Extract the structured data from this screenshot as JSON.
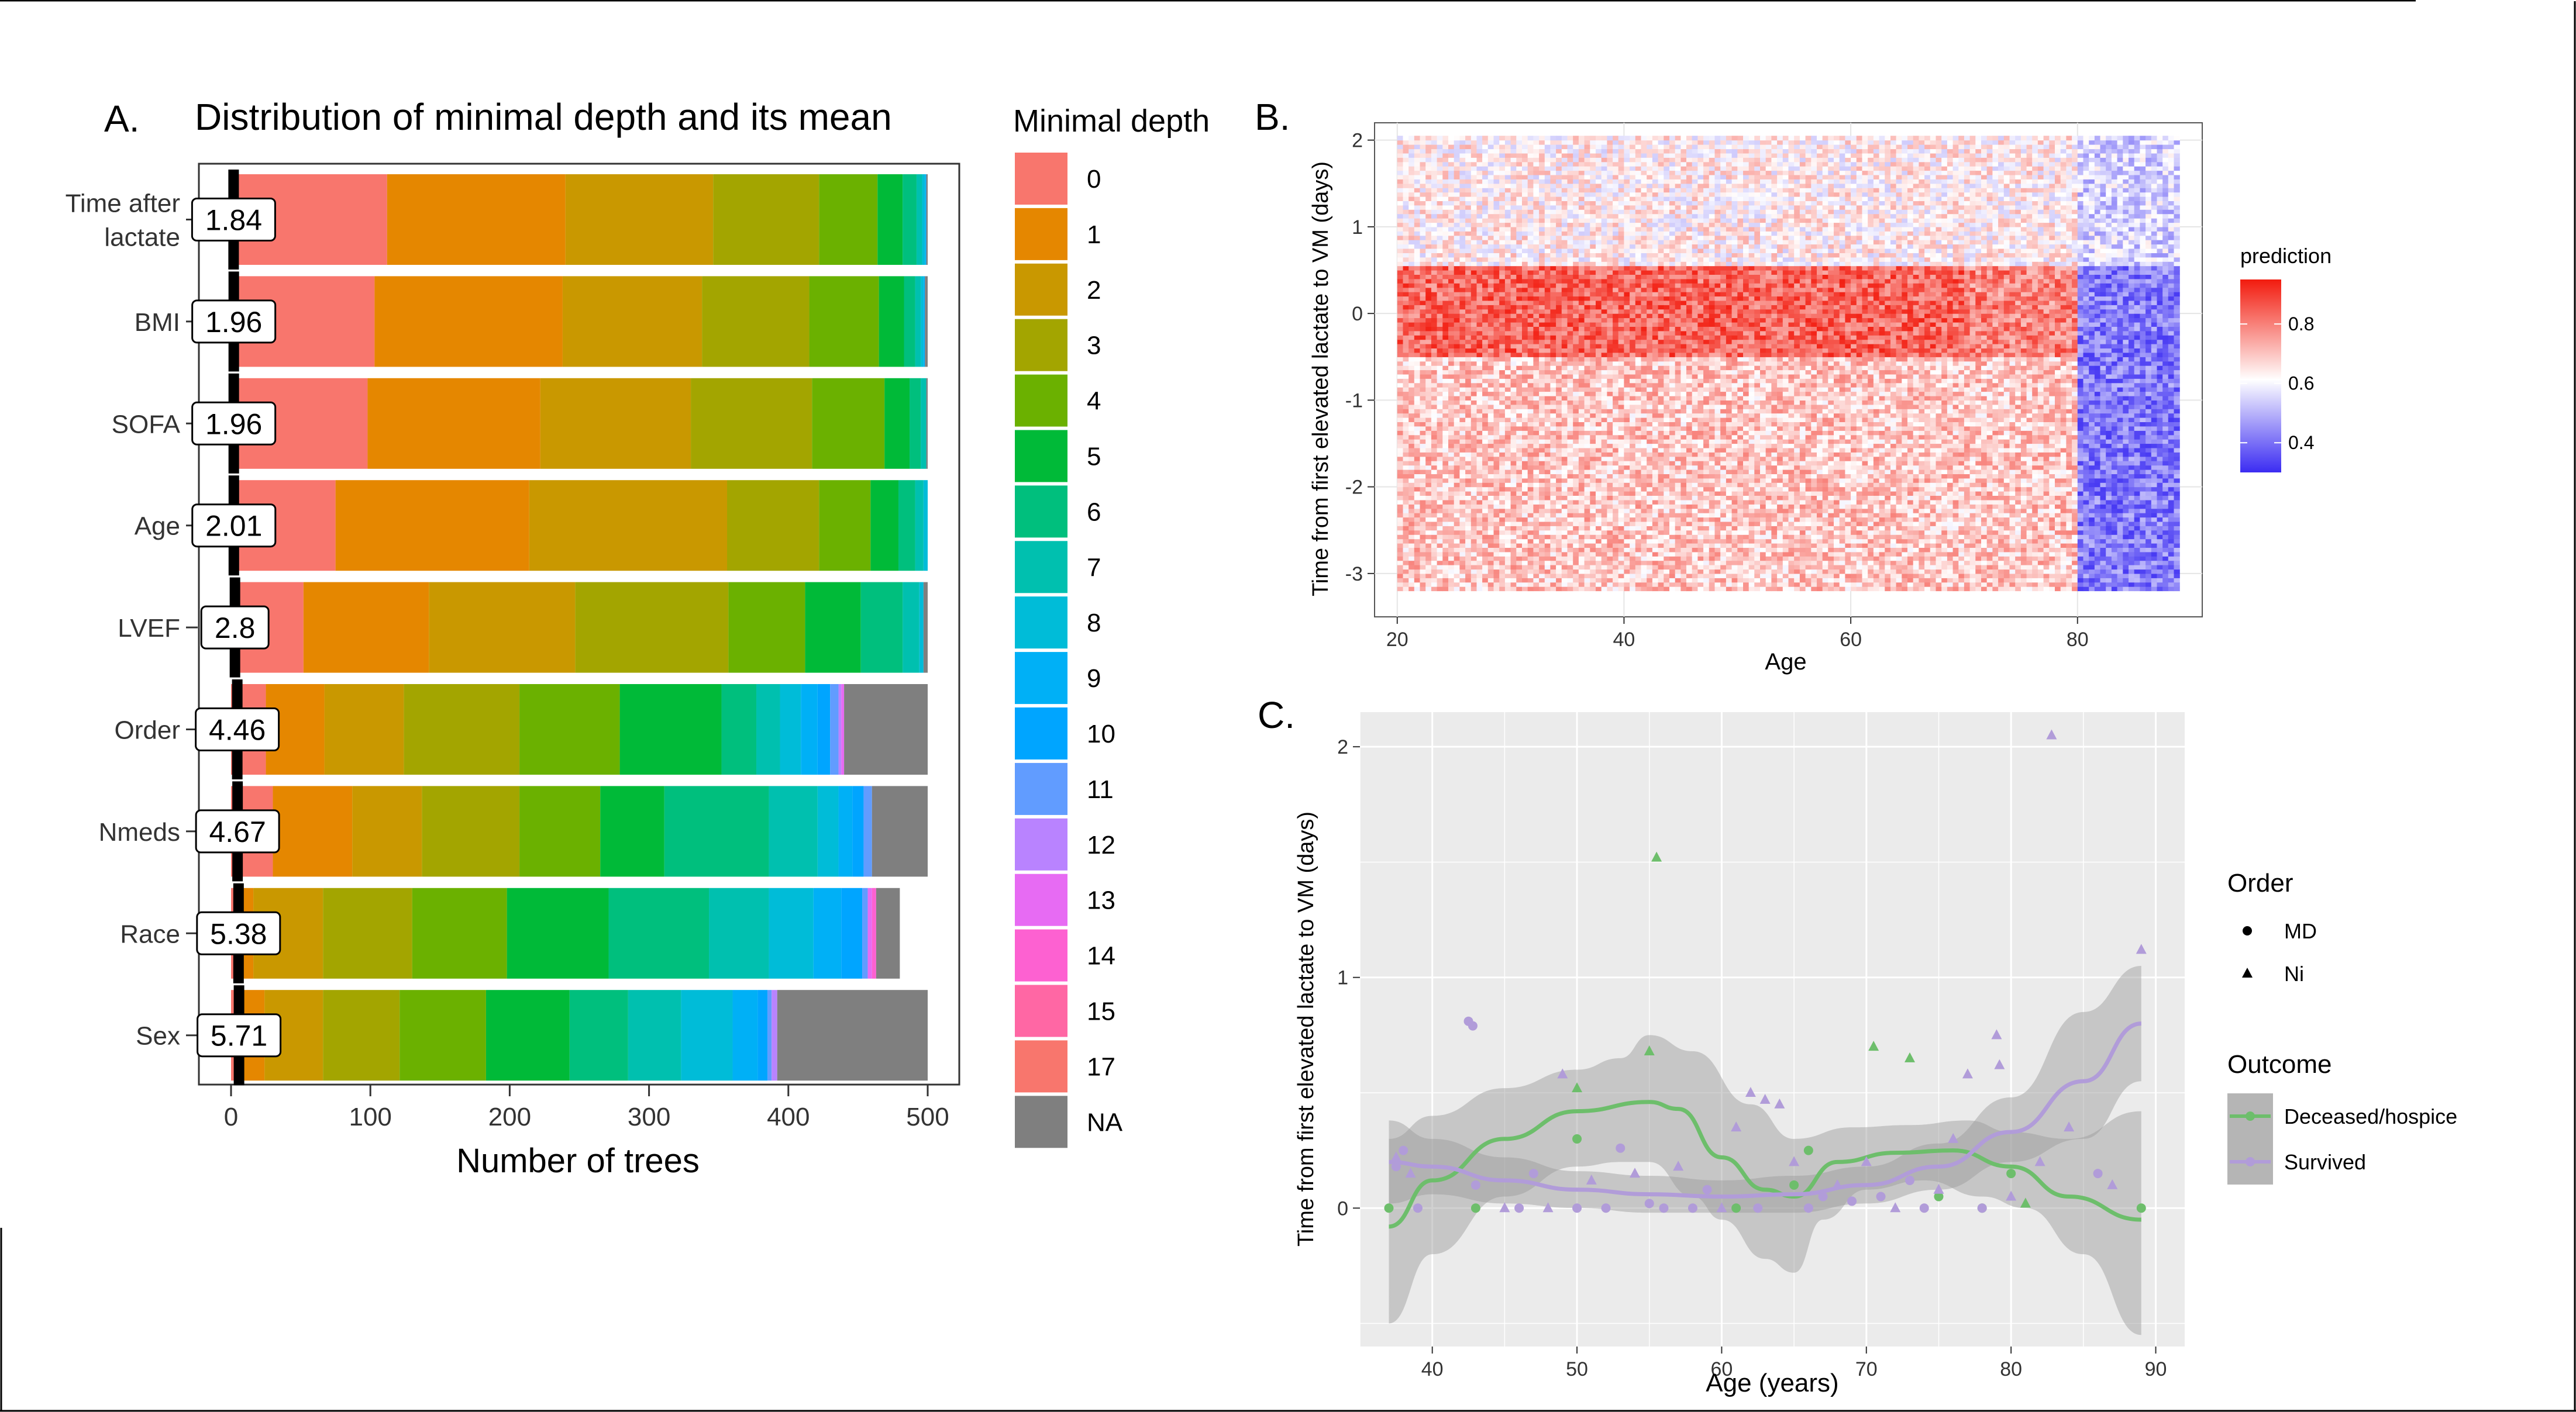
{
  "panels": {
    "a": {
      "letter": "A.",
      "title": "Distribution of minimal depth and its mean"
    },
    "b": {
      "letter": "B."
    },
    "c": {
      "letter": "C."
    }
  },
  "chart_data": [
    {
      "id": "A",
      "type": "bar",
      "orientation": "horizontal",
      "stacked": true,
      "title": "Distribution of minimal depth and its mean",
      "xlabel": "Number of trees",
      "ylabel": "",
      "xlim": [
        0,
        500
      ],
      "xticks": [
        0,
        100,
        200,
        300,
        400,
        500
      ],
      "legend_title": "Minimal depth",
      "legend_position": "right",
      "segment_keys": [
        "0",
        "1",
        "2",
        "3",
        "4",
        "5",
        "6",
        "7",
        "8",
        "9",
        "10",
        "11",
        "12",
        "13",
        "14",
        "15",
        "17",
        "NA"
      ],
      "segment_colors": [
        "#F8766D",
        "#E58700",
        "#C99800",
        "#A3A500",
        "#6BB100",
        "#00BA38",
        "#00BF7D",
        "#00C0AF",
        "#00BCD8",
        "#00B0F6",
        "#00A5FF",
        "#619CFF",
        "#B983FF",
        "#E76BF3",
        "#FD61D1",
        "#FF67A4",
        "#F8766D",
        "#7F7F7F"
      ],
      "categories": [
        "Time after lactate",
        "BMI",
        "SOFA",
        "Age",
        "LVEF",
        "Order",
        "Nmeds",
        "Race",
        "Sex"
      ],
      "category_display": [
        [
          "Time after",
          "lactate"
        ],
        [
          "BMI"
        ],
        [
          "SOFA"
        ],
        [
          "Age"
        ],
        [
          "LVEF"
        ],
        [
          "Order"
        ],
        [
          "Nmeds"
        ],
        [
          "Race"
        ],
        [
          "Sex"
        ]
      ],
      "counts": [
        [
          112,
          128,
          106,
          76,
          42,
          18,
          10,
          4,
          2,
          1,
          0,
          0,
          0,
          0,
          0,
          0,
          0,
          1
        ],
        [
          103,
          135,
          100,
          77,
          50,
          18,
          8,
          4,
          2,
          1,
          0,
          0,
          0,
          0,
          0,
          0,
          0,
          2
        ],
        [
          98,
          124,
          108,
          87,
          52,
          18,
          8,
          4,
          0,
          0,
          0,
          0,
          0,
          0,
          0,
          0,
          0,
          1
        ],
        [
          75,
          139,
          142,
          66,
          37,
          20,
          12,
          6,
          3,
          0,
          0,
          0,
          0,
          0,
          0,
          0,
          0,
          0
        ],
        [
          52,
          90,
          105,
          110,
          55,
          40,
          30,
          12,
          3,
          0,
          0,
          0,
          0,
          0,
          0,
          0,
          0,
          3
        ],
        [
          25,
          42,
          57,
          83,
          72,
          73,
          25,
          17,
          15,
          12,
          9,
          6,
          2,
          2,
          0,
          0,
          0,
          60
        ],
        [
          30,
          57,
          50,
          70,
          58,
          46,
          75,
          35,
          15,
          10,
          8,
          6,
          0,
          0,
          0,
          0,
          0,
          40
        ],
        [
          6,
          10,
          50,
          64,
          68,
          73,
          72,
          43,
          32,
          20,
          15,
          4,
          0,
          3,
          3,
          0,
          0,
          17
        ],
        [
          2,
          22,
          42,
          55,
          62,
          60,
          42,
          38,
          37,
          18,
          7,
          3,
          4,
          0,
          0,
          0,
          0,
          108
        ]
      ],
      "means": [
        1.84,
        1.96,
        1.96,
        2.01,
        2.8,
        4.46,
        4.67,
        5.38,
        5.71
      ],
      "mean_labels": [
        "1.84",
        "1.96",
        "1.96",
        "2.01",
        "2.8",
        "4.46",
        "4.67",
        "5.38",
        "5.71"
      ]
    },
    {
      "id": "B",
      "type": "heatmap",
      "xlabel": "Age",
      "ylabel": "Time from first elevated lactate to VM (days)",
      "xlim": [
        18,
        91
      ],
      "ylim": [
        -3.5,
        2.2
      ],
      "xticks": [
        20,
        40,
        60,
        80
      ],
      "yticks": [
        -3,
        -2,
        -1,
        0,
        1,
        2
      ],
      "x_data_range": [
        20,
        89
      ],
      "y_data_range": [
        -3.2,
        2.05
      ],
      "legend_title": "prediction",
      "legend_position": "right",
      "color_scale": {
        "low": "#3B2CF2",
        "mid": "#FFFFFF",
        "high": "#F21B0E",
        "min": 0.3,
        "mid_value": 0.62,
        "max": 0.95
      },
      "legend_ticks": [
        0.4,
        0.6,
        0.8
      ],
      "regions": [
        {
          "x": [
            20,
            80
          ],
          "y": [
            0.55,
            2.05
          ],
          "mean": 0.64
        },
        {
          "x": [
            20,
            70
          ],
          "y": [
            -0.5,
            0.55
          ],
          "mean": 0.84
        },
        {
          "x": [
            70,
            80
          ],
          "y": [
            -0.5,
            0.55
          ],
          "mean": 0.8
        },
        {
          "x": [
            20,
            80
          ],
          "y": [
            -3.2,
            -0.5
          ],
          "mean": 0.7
        },
        {
          "x": [
            80,
            89
          ],
          "y": [
            0.55,
            2.05
          ],
          "mean": 0.55
        },
        {
          "x": [
            80,
            89
          ],
          "y": [
            -3.2,
            0.55
          ],
          "mean": 0.42
        }
      ]
    },
    {
      "id": "C",
      "type": "scatter",
      "xlabel": "Age (years)",
      "ylabel": "Time from first elevated lactate to VM (days)",
      "xlim": [
        35,
        92
      ],
      "ylim": [
        -0.6,
        2.15
      ],
      "xticks": [
        40,
        50,
        60,
        70,
        80,
        90
      ],
      "yticks": [
        0,
        1,
        2
      ],
      "legend_position": "right",
      "shape_legend": {
        "title": "Order",
        "items": [
          {
            "label": "MD",
            "shape": "circle"
          },
          {
            "label": "Ni",
            "shape": "triangle"
          }
        ]
      },
      "color_legend": {
        "title": "Outcome"
      },
      "series": [
        {
          "name": "Deceased/hospice",
          "color": "#6DBE6B",
          "points": [
            {
              "x": 37,
              "y": 0,
              "s": "c"
            },
            {
              "x": 43,
              "y": 0,
              "s": "c"
            },
            {
              "x": 50,
              "y": 0.3,
              "s": "c"
            },
            {
              "x": 50,
              "y": 0.52,
              "s": "t"
            },
            {
              "x": 55,
              "y": 0.68,
              "s": "t"
            },
            {
              "x": 55.5,
              "y": 1.52,
              "s": "t"
            },
            {
              "x": 61,
              "y": 0,
              "s": "c"
            },
            {
              "x": 65,
              "y": 0.1,
              "s": "c"
            },
            {
              "x": 66,
              "y": 0.25,
              "s": "c"
            },
            {
              "x": 70.5,
              "y": 0.7,
              "s": "t"
            },
            {
              "x": 73,
              "y": 0.65,
              "s": "t"
            },
            {
              "x": 75,
              "y": 0.05,
              "s": "c"
            },
            {
              "x": 78,
              "y": 0,
              "s": "c"
            },
            {
              "x": 80,
              "y": 0.15,
              "s": "c"
            },
            {
              "x": 81,
              "y": 0.02,
              "s": "t"
            },
            {
              "x": 89,
              "y": 0,
              "s": "c"
            }
          ],
          "smooth": [
            [
              37,
              -0.08
            ],
            [
              40,
              0.12
            ],
            [
              45,
              0.3
            ],
            [
              50,
              0.42
            ],
            [
              55,
              0.46
            ],
            [
              57,
              0.43
            ],
            [
              60,
              0.22
            ],
            [
              63,
              0.08
            ],
            [
              65,
              0.05
            ],
            [
              68,
              0.2
            ],
            [
              72,
              0.24
            ],
            [
              76,
              0.25
            ],
            [
              80,
              0.18
            ],
            [
              84,
              0.05
            ],
            [
              89,
              -0.05
            ]
          ],
          "band_upper": [
            [
              37,
              0.3
            ],
            [
              40,
              0.4
            ],
            [
              45,
              0.52
            ],
            [
              50,
              0.6
            ],
            [
              53,
              0.65
            ],
            [
              55,
              0.75
            ],
            [
              58,
              0.68
            ],
            [
              62,
              0.45
            ],
            [
              65,
              0.3
            ],
            [
              69,
              0.35
            ],
            [
              73,
              0.36
            ],
            [
              77,
              0.38
            ],
            [
              80,
              0.33
            ],
            [
              84,
              0.3
            ],
            [
              89,
              0.42
            ]
          ],
          "band_lower": [
            [
              37,
              -0.5
            ],
            [
              40,
              -0.2
            ],
            [
              45,
              0.05
            ],
            [
              50,
              0.18
            ],
            [
              53,
              0.2
            ],
            [
              55,
              0.2
            ],
            [
              58,
              0.05
            ],
            [
              60,
              -0.05
            ],
            [
              63,
              -0.22
            ],
            [
              65,
              -0.28
            ],
            [
              67,
              -0.05
            ],
            [
              70,
              0.08
            ],
            [
              74,
              0.12
            ],
            [
              78,
              0.05
            ],
            [
              81,
              0
            ],
            [
              85,
              -0.2
            ],
            [
              89,
              -0.55
            ]
          ]
        },
        {
          "name": "Survived",
          "color": "#B19CD9",
          "points": [
            {
              "x": 37.5,
              "y": 0.18,
              "s": "c"
            },
            {
              "x": 37.5,
              "y": 0.22,
              "s": "t"
            },
            {
              "x": 38,
              "y": 0.25,
              "s": "c"
            },
            {
              "x": 38.5,
              "y": 0.15,
              "s": "t"
            },
            {
              "x": 39,
              "y": 0,
              "s": "c"
            },
            {
              "x": 42.5,
              "y": 0.81,
              "s": "c"
            },
            {
              "x": 42.8,
              "y": 0.79,
              "s": "c"
            },
            {
              "x": 43,
              "y": 0.1,
              "s": "c"
            },
            {
              "x": 45,
              "y": 0,
              "s": "t"
            },
            {
              "x": 46,
              "y": 0,
              "s": "c"
            },
            {
              "x": 47,
              "y": 0.15,
              "s": "c"
            },
            {
              "x": 48,
              "y": 0,
              "s": "t"
            },
            {
              "x": 49,
              "y": 0.58,
              "s": "t"
            },
            {
              "x": 50,
              "y": 0,
              "s": "c"
            },
            {
              "x": 51,
              "y": 0.12,
              "s": "t"
            },
            {
              "x": 52,
              "y": 0,
              "s": "c"
            },
            {
              "x": 53,
              "y": 0.26,
              "s": "c"
            },
            {
              "x": 54,
              "y": 0.15,
              "s": "t"
            },
            {
              "x": 55,
              "y": 0.02,
              "s": "c"
            },
            {
              "x": 56,
              "y": 0,
              "s": "c"
            },
            {
              "x": 57,
              "y": 0.18,
              "s": "t"
            },
            {
              "x": 58,
              "y": 0,
              "s": "c"
            },
            {
              "x": 59,
              "y": 0.08,
              "s": "c"
            },
            {
              "x": 60,
              "y": 0,
              "s": "t"
            },
            {
              "x": 61,
              "y": 0.35,
              "s": "t"
            },
            {
              "x": 62,
              "y": 0.5,
              "s": "t"
            },
            {
              "x": 62.5,
              "y": 0,
              "s": "c"
            },
            {
              "x": 63,
              "y": 0.47,
              "s": "t"
            },
            {
              "x": 64,
              "y": 0.45,
              "s": "t"
            },
            {
              "x": 65,
              "y": 0.2,
              "s": "t"
            },
            {
              "x": 66,
              "y": 0,
              "s": "c"
            },
            {
              "x": 67,
              "y": 0.05,
              "s": "c"
            },
            {
              "x": 68,
              "y": 0.1,
              "s": "t"
            },
            {
              "x": 69,
              "y": 0.03,
              "s": "c"
            },
            {
              "x": 70,
              "y": 0.2,
              "s": "t"
            },
            {
              "x": 71,
              "y": 0.05,
              "s": "c"
            },
            {
              "x": 72,
              "y": 0,
              "s": "t"
            },
            {
              "x": 73,
              "y": 0.12,
              "s": "c"
            },
            {
              "x": 74,
              "y": 0,
              "s": "c"
            },
            {
              "x": 75,
              "y": 0.08,
              "s": "t"
            },
            {
              "x": 76,
              "y": 0.3,
              "s": "t"
            },
            {
              "x": 77,
              "y": 0.58,
              "s": "t"
            },
            {
              "x": 78,
              "y": 0,
              "s": "c"
            },
            {
              "x": 79,
              "y": 0.75,
              "s": "t"
            },
            {
              "x": 79.2,
              "y": 0.62,
              "s": "t"
            },
            {
              "x": 80,
              "y": 0.05,
              "s": "t"
            },
            {
              "x": 82,
              "y": 0.2,
              "s": "t"
            },
            {
              "x": 82.8,
              "y": 2.05,
              "s": "t"
            },
            {
              "x": 84,
              "y": 0.35,
              "s": "t"
            },
            {
              "x": 86,
              "y": 0.15,
              "s": "c"
            },
            {
              "x": 87,
              "y": 0.1,
              "s": "t"
            },
            {
              "x": 89,
              "y": 1.12,
              "s": "t"
            }
          ],
          "smooth": [
            [
              37,
              0.2
            ],
            [
              40,
              0.18
            ],
            [
              45,
              0.12
            ],
            [
              50,
              0.08
            ],
            [
              55,
              0.06
            ],
            [
              60,
              0.05
            ],
            [
              65,
              0.06
            ],
            [
              70,
              0.1
            ],
            [
              75,
              0.18
            ],
            [
              80,
              0.33
            ],
            [
              85,
              0.55
            ],
            [
              89,
              0.8
            ]
          ],
          "band_upper": [
            [
              37,
              0.38
            ],
            [
              40,
              0.3
            ],
            [
              45,
              0.22
            ],
            [
              50,
              0.16
            ],
            [
              55,
              0.14
            ],
            [
              60,
              0.12
            ],
            [
              65,
              0.14
            ],
            [
              70,
              0.18
            ],
            [
              75,
              0.28
            ],
            [
              80,
              0.48
            ],
            [
              85,
              0.85
            ],
            [
              89,
              1.05
            ]
          ],
          "band_lower": [
            [
              37,
              0.02
            ],
            [
              40,
              0.06
            ],
            [
              45,
              0.02
            ],
            [
              50,
              0
            ],
            [
              55,
              -0.02
            ],
            [
              60,
              -0.02
            ],
            [
              65,
              -0.02
            ],
            [
              70,
              0.02
            ],
            [
              75,
              0.08
            ],
            [
              80,
              0.2
            ],
            [
              85,
              0.3
            ],
            [
              89,
              0.55
            ]
          ]
        }
      ]
    }
  ]
}
